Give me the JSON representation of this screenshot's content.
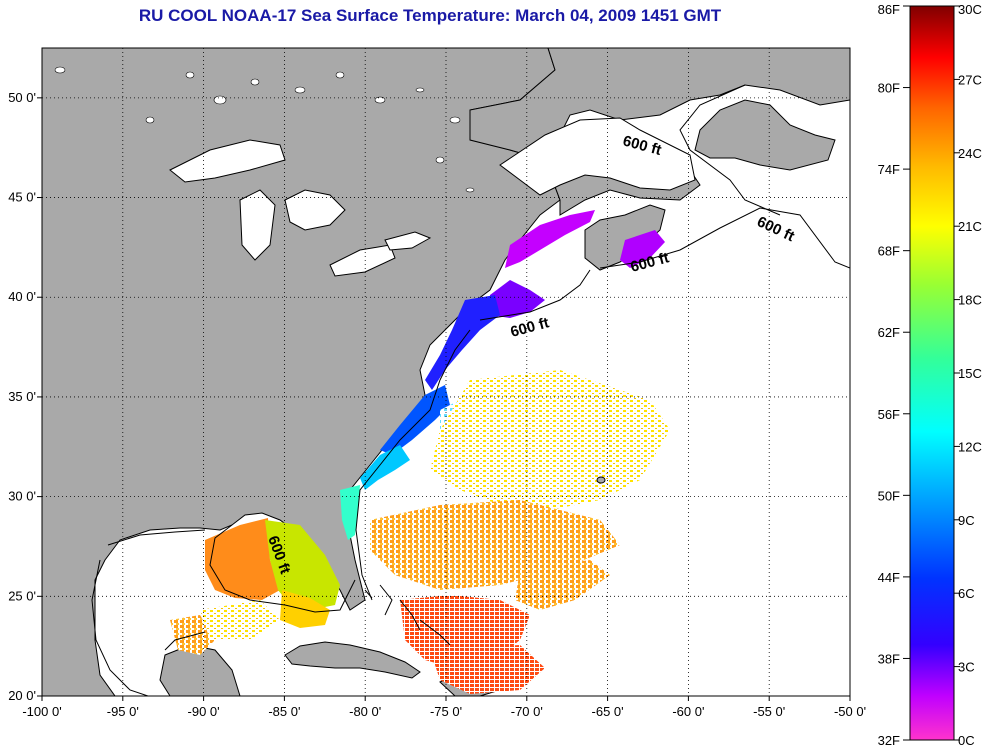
{
  "title": "RU COOL  NOAA-17  Sea Surface Temperature:  March 04, 2009 1451 GMT",
  "map": {
    "lon_range": [
      -100,
      -50
    ],
    "lat_range": [
      20,
      52.5
    ],
    "x_ticks": [
      "-100 0'",
      "-95 0'",
      "-90 0'",
      "-85 0'",
      "-80 0'",
      "-75 0'",
      "-70 0'",
      "-65 0'",
      "-60 0'",
      "-55 0'",
      "-50 0'"
    ],
    "y_ticks": [
      "50 0'",
      "45 0'",
      "40 0'",
      "35 0'",
      "30 0'",
      "25 0'",
      "20 0'"
    ],
    "grid": true,
    "contour_label": "600 ft",
    "colors": {
      "land": "#a9a9a9",
      "ocean": "#ffffff",
      "coast": "#000000"
    }
  },
  "colorbar": {
    "fahrenheit": [
      "86F",
      "80F",
      "74F",
      "68F",
      "62F",
      "56F",
      "50F",
      "44F",
      "38F",
      "32F"
    ],
    "celsius": [
      "30C",
      "27C",
      "24C",
      "21C",
      "18C",
      "15C",
      "12C",
      "9C",
      "6C",
      "3C",
      "0C"
    ],
    "stops": [
      "#ff00ff",
      "#cc00ff",
      "#6a00ff",
      "#0000ff",
      "#0080ff",
      "#00e6ff",
      "#00ffcc",
      "#66ff00",
      "#ffff00",
      "#ffaa00",
      "#ff5500",
      "#ff0000",
      "#c00000",
      "#7a0000"
    ]
  }
}
